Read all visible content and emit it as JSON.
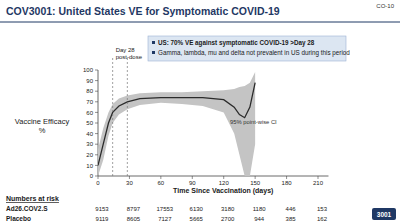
{
  "chart_data": {
    "type": "line",
    "slide_number": "CO-10",
    "title": "COV3001: United States VE for Symptomatic COVID-19",
    "bullets": [
      "US: 70% VE against symptomatic COVID-19 >Day 28",
      "Gamma, lambda, mu and delta not prevalent in US during this period"
    ],
    "ylabel": [
      "Vaccine Efficacy",
      "%"
    ],
    "xlabel": "Time Since Vaccination (days)",
    "annotations": [
      {
        "lines": [
          "Day 28",
          "post-dose"
        ]
      },
      {
        "lines": [
          "95% point-wise CI"
        ]
      }
    ],
    "vlines": [
      14,
      28
    ],
    "x": [
      0,
      5,
      10,
      14,
      20,
      28,
      40,
      60,
      80,
      100,
      120,
      130,
      135,
      140,
      145,
      150
    ],
    "series": [
      {
        "color": "#2b2b2b",
        "values": [
          10,
          30,
          50,
          60,
          66,
          70,
          73,
          74,
          74,
          74,
          72,
          65,
          58,
          55,
          65,
          88
        ],
        "ci_lower": [
          0,
          15,
          38,
          50,
          58,
          63,
          67,
          69,
          68,
          66,
          60,
          40,
          20,
          0,
          0,
          30
        ],
        "ci_upper": [
          25,
          45,
          60,
          68,
          73,
          76,
          78,
          79,
          79,
          80,
          81,
          82,
          84,
          85,
          88,
          98
        ]
      }
    ],
    "xlim": [
      0,
      220
    ],
    "xticks": [
      0,
      30,
      60,
      90,
      120,
      150,
      180,
      210
    ],
    "ylim": [
      0,
      100
    ],
    "yticks": [
      0,
      10,
      20,
      30,
      40,
      50,
      60,
      70,
      80,
      90,
      100
    ],
    "grid": false,
    "risk_table": {
      "title": "Numbers at risk",
      "rows": [
        {
          "label": "Ad26.COV2.S",
          "values": [
            9153,
            8797,
            17553,
            6130,
            3180,
            1180,
            446,
            153
          ]
        },
        {
          "label": "Placebo",
          "values": [
            9119,
            8605,
            7127,
            5665,
            2700,
            944,
            385,
            162
          ]
        }
      ]
    },
    "logo": "3001"
  }
}
